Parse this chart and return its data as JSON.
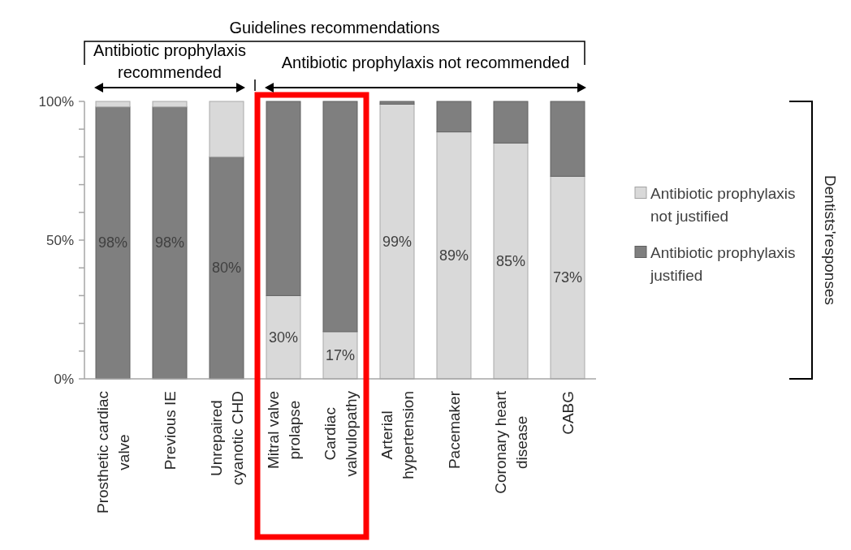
{
  "chart_data": {
    "type": "bar",
    "stacked": true,
    "categories": [
      "Prosthetic cardiac valve",
      "Previous IE",
      "Unrepaired cyanotic CHD",
      "Mitral valve prolapse",
      "Cardiac valvulopathy",
      "Arterial hypertension",
      "Pacemaker",
      "Coronary heart disease",
      "CABG"
    ],
    "series": [
      {
        "name": "Antibiotic prophylaxis justified",
        "color": "#7f7f7f",
        "values": [
          98,
          98,
          80,
          null,
          null,
          null,
          null,
          null,
          null
        ],
        "value_labels": [
          "98%",
          "98%",
          "80%",
          null,
          null,
          null,
          null,
          null,
          null
        ]
      },
      {
        "name": "Antibiotic prophylaxis not justified",
        "color": "#d9d9d9",
        "values": [
          2,
          2,
          20,
          30,
          17,
          99,
          89,
          85,
          73
        ],
        "value_labels": [
          null,
          null,
          null,
          "30%",
          "17%",
          "99%",
          "89%",
          "85%",
          "73%"
        ]
      },
      {
        "color": "#7f7f7f",
        "values": [
          null,
          null,
          null,
          70,
          83,
          1,
          11,
          15,
          27
        ]
      }
    ],
    "ylim": [
      0,
      100
    ],
    "yticks": [
      {
        "value": 0,
        "label": "0%"
      },
      {
        "value": 10,
        "label": null
      },
      {
        "value": 20,
        "label": null
      },
      {
        "value": 30,
        "label": null
      },
      {
        "value": 40,
        "label": null
      },
      {
        "value": 50,
        "label": "50%"
      },
      {
        "value": 60,
        "label": null
      },
      {
        "value": 70,
        "label": null
      },
      {
        "value": 80,
        "label": null
      },
      {
        "value": 90,
        "label": null
      },
      {
        "value": 100,
        "label": "100%"
      }
    ],
    "legend": "right",
    "legend_title": "Dentists'responses",
    "annotations": [
      "Guidelines recommendations",
      "Antibiotic prophylaxis recommended",
      "Antibiotic prophylaxis not recommended"
    ]
  }
}
